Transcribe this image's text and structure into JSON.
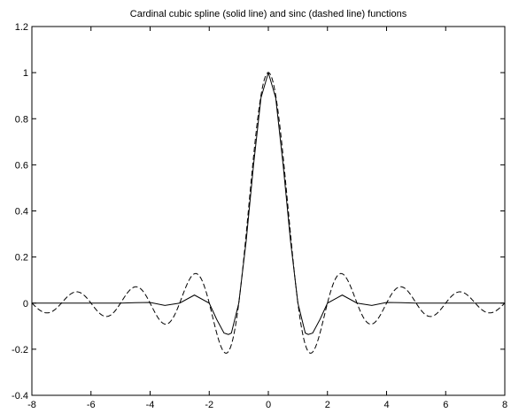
{
  "chart_data": {
    "type": "line",
    "title": "Cardinal cubic spline (solid line) and sinc (dashed line) functions",
    "xlabel": "",
    "ylabel": "",
    "xlim": [
      -8,
      8
    ],
    "ylim": [
      -0.4,
      1.2
    ],
    "x_ticks": [
      -8,
      -6,
      -4,
      -2,
      0,
      2,
      4,
      6,
      8
    ],
    "y_ticks": [
      -0.4,
      -0.2,
      0,
      0.2,
      0.4,
      0.6,
      0.8,
      1,
      1.2
    ],
    "x_tick_labels": [
      "-8",
      "-6",
      "-4",
      "-2",
      "0",
      "2",
      "4",
      "6",
      "8"
    ],
    "y_tick_labels": [
      "-0.4",
      "-0.2",
      "0",
      "0.2",
      "0.4",
      "0.6",
      "0.8",
      "1",
      "1.2"
    ],
    "grid": false,
    "series": [
      {
        "style": "solid",
        "color": "#000000",
        "x": [
          -8,
          -7,
          -6,
          -5,
          -4.5,
          -4,
          -3.5,
          -3,
          -2.5,
          -2,
          -1.75,
          -1.5,
          -1.35,
          -1.25,
          -1,
          -0.75,
          -0.5,
          -0.25,
          0,
          0.25,
          0.5,
          0.75,
          1,
          1.25,
          1.35,
          1.5,
          1.75,
          2,
          2.5,
          3,
          3.5,
          4,
          4.5,
          5,
          6,
          7,
          8
        ],
        "y": [
          0,
          0,
          0,
          0,
          0.002,
          0.003,
          -0.01,
          0,
          0.035,
          0,
          -0.07,
          -0.13,
          -0.136,
          -0.13,
          0,
          0.27,
          0.6,
          0.89,
          1,
          0.89,
          0.6,
          0.27,
          0,
          -0.13,
          -0.136,
          -0.13,
          -0.07,
          0,
          0.035,
          0,
          -0.01,
          0.003,
          0.002,
          0,
          0,
          0,
          0
        ]
      },
      {
        "style": "dashed",
        "color": "#000000",
        "function": "sinc",
        "x_range": [
          -8,
          8
        ]
      }
    ]
  }
}
